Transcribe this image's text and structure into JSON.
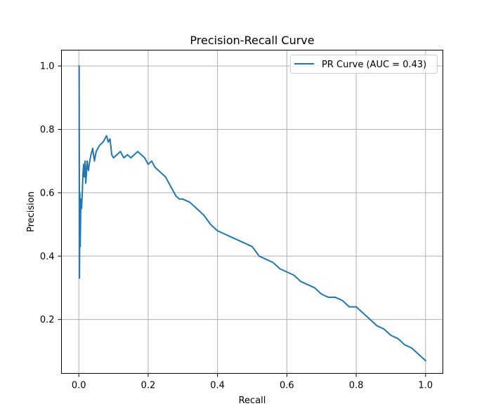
{
  "chart_data": {
    "type": "line",
    "title": "Precision-Recall Curve",
    "xlabel": "Recall",
    "ylabel": "Precision",
    "xlim": [
      -0.05,
      1.05
    ],
    "ylim": [
      0.03,
      1.05
    ],
    "xticks": [
      0.0,
      0.2,
      0.4,
      0.6,
      0.8,
      1.0
    ],
    "xtick_labels": [
      "0.0",
      "0.2",
      "0.4",
      "0.6",
      "0.8",
      "1.0"
    ],
    "yticks": [
      0.2,
      0.4,
      0.6,
      0.8,
      1.0
    ],
    "ytick_labels": [
      "0.2",
      "0.4",
      "0.6",
      "0.8",
      "1.0"
    ],
    "grid": true,
    "legend_position": "top-right",
    "series": [
      {
        "name": "PR Curve (AUC = 0.43)",
        "color": "#1f77b4",
        "x": [
          0.0,
          0.001,
          0.002,
          0.003,
          0.004,
          0.005,
          0.006,
          0.008,
          0.01,
          0.012,
          0.014,
          0.016,
          0.018,
          0.02,
          0.022,
          0.024,
          0.026,
          0.028,
          0.03,
          0.035,
          0.04,
          0.045,
          0.05,
          0.06,
          0.07,
          0.08,
          0.085,
          0.09,
          0.095,
          0.1,
          0.11,
          0.12,
          0.13,
          0.14,
          0.15,
          0.16,
          0.17,
          0.18,
          0.19,
          0.2,
          0.21,
          0.22,
          0.23,
          0.24,
          0.25,
          0.26,
          0.27,
          0.28,
          0.29,
          0.3,
          0.32,
          0.34,
          0.36,
          0.38,
          0.4,
          0.42,
          0.44,
          0.46,
          0.48,
          0.5,
          0.52,
          0.54,
          0.56,
          0.58,
          0.6,
          0.62,
          0.64,
          0.66,
          0.68,
          0.7,
          0.72,
          0.74,
          0.76,
          0.78,
          0.8,
          0.82,
          0.84,
          0.86,
          0.88,
          0.9,
          0.92,
          0.94,
          0.96,
          0.98,
          1.0
        ],
        "y": [
          1.0,
          1.0,
          0.33,
          0.6,
          0.43,
          0.5,
          0.58,
          0.55,
          0.6,
          0.66,
          0.69,
          0.65,
          0.7,
          0.63,
          0.66,
          0.7,
          0.68,
          0.67,
          0.69,
          0.72,
          0.74,
          0.7,
          0.73,
          0.75,
          0.76,
          0.78,
          0.76,
          0.77,
          0.72,
          0.71,
          0.72,
          0.73,
          0.71,
          0.72,
          0.71,
          0.72,
          0.73,
          0.72,
          0.71,
          0.69,
          0.7,
          0.68,
          0.67,
          0.66,
          0.65,
          0.63,
          0.61,
          0.59,
          0.58,
          0.58,
          0.57,
          0.55,
          0.53,
          0.5,
          0.48,
          0.47,
          0.46,
          0.45,
          0.44,
          0.43,
          0.4,
          0.39,
          0.38,
          0.36,
          0.35,
          0.34,
          0.32,
          0.31,
          0.3,
          0.28,
          0.27,
          0.27,
          0.26,
          0.24,
          0.24,
          0.22,
          0.2,
          0.18,
          0.17,
          0.15,
          0.14,
          0.12,
          0.11,
          0.09,
          0.07
        ]
      }
    ]
  }
}
